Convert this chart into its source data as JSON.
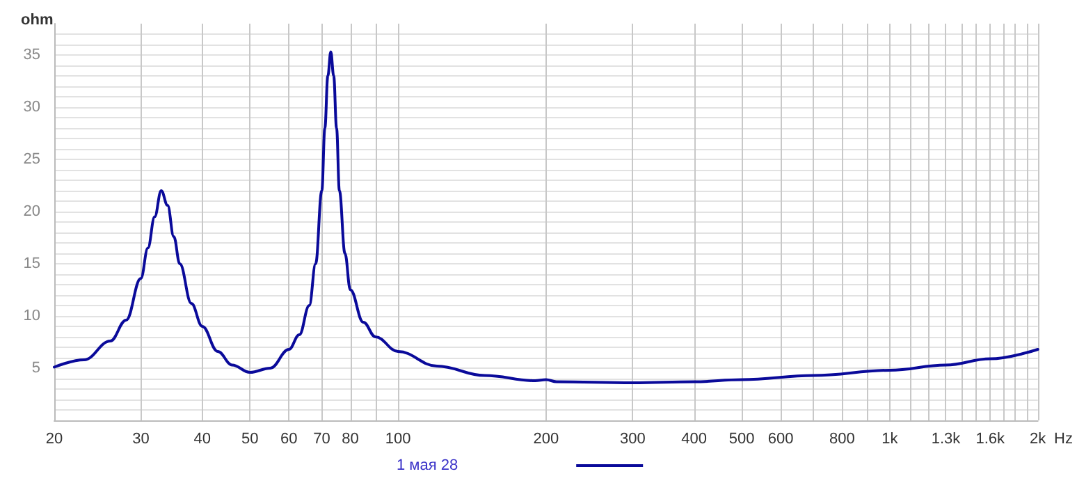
{
  "chart_data": {
    "type": "line",
    "ylabel": "ohm",
    "xlabel": "Hz",
    "log": "x",
    "grid": true,
    "legend": "bottom",
    "marker": "none",
    "line_style": "solid",
    "xlim": [
      20,
      2000
    ],
    "ylim": [
      0,
      38
    ],
    "xticks": [
      20,
      30,
      40,
      50,
      60,
      70,
      80,
      {
        "value": 90,
        "label": null
      },
      100,
      200,
      300,
      400,
      500,
      600,
      {
        "value": 700,
        "label": null
      },
      800,
      {
        "value": 900,
        "label": null
      },
      {
        "value": 1000,
        "label": "1k"
      },
      {
        "value": 1100,
        "label": null
      },
      {
        "value": 1200,
        "label": null
      },
      {
        "value": 1300,
        "label": "1.3k"
      },
      {
        "value": 1400,
        "label": null
      },
      {
        "value": 1500,
        "label": null
      },
      {
        "value": 1600,
        "label": "1.6k"
      },
      {
        "value": 1700,
        "label": null
      },
      {
        "value": 1800,
        "label": null
      },
      {
        "value": 1900,
        "label": null
      },
      {
        "value": 2000,
        "label": "2k"
      }
    ],
    "yticks": [
      {
        "value": 1,
        "label": null
      },
      {
        "value": 2,
        "label": null
      },
      {
        "value": 3,
        "label": null
      },
      {
        "value": 4,
        "label": null
      },
      5,
      {
        "value": 6,
        "label": null
      },
      {
        "value": 7,
        "label": null
      },
      {
        "value": 8,
        "label": null
      },
      {
        "value": 9,
        "label": null
      },
      10,
      {
        "value": 11,
        "label": null
      },
      {
        "value": 12,
        "label": null
      },
      {
        "value": 13,
        "label": null
      },
      {
        "value": 14,
        "label": null
      },
      15,
      {
        "value": 16,
        "label": null
      },
      {
        "value": 17,
        "label": null
      },
      {
        "value": 18,
        "label": null
      },
      {
        "value": 19,
        "label": null
      },
      20,
      {
        "value": 21,
        "label": null
      },
      {
        "value": 22,
        "label": null
      },
      {
        "value": 23,
        "label": null
      },
      {
        "value": 24,
        "label": null
      },
      25,
      {
        "value": 26,
        "label": null
      },
      {
        "value": 27,
        "label": null
      },
      {
        "value": 28,
        "label": null
      },
      {
        "value": 29,
        "label": null
      },
      30,
      {
        "value": 31,
        "label": null
      },
      {
        "value": 32,
        "label": null
      },
      {
        "value": 33,
        "label": null
      },
      {
        "value": 34,
        "label": null
      },
      35,
      {
        "value": 36,
        "label": null
      },
      {
        "value": 37,
        "label": null
      }
    ],
    "series": [
      {
        "name": "1 мая 28",
        "color": "#0a0a9a",
        "x": [
          20,
          23,
          26,
          28,
          30,
          31,
          32,
          33,
          34,
          35,
          36,
          38,
          40,
          43,
          46,
          50,
          55,
          60,
          63,
          66,
          68,
          70,
          71,
          72,
          73,
          74,
          75,
          76,
          78,
          80,
          85,
          90,
          100,
          120,
          150,
          190,
          200,
          210,
          300,
          400,
          500,
          700,
          1000,
          1300,
          1600,
          2000
        ],
        "values": [
          5.1,
          5.8,
          7.6,
          9.6,
          13.6,
          16.5,
          19.5,
          22,
          20.6,
          17.6,
          15,
          11.2,
          9,
          6.6,
          5.3,
          4.6,
          5,
          6.8,
          8.2,
          11,
          15,
          22,
          28,
          33,
          35.3,
          33,
          28,
          22,
          16,
          12.5,
          9.4,
          8,
          6.6,
          5.2,
          4.3,
          3.8,
          3.9,
          3.7,
          3.6,
          3.7,
          3.9,
          4.3,
          4.8,
          5.3,
          5.9,
          6.8
        ]
      }
    ]
  }
}
